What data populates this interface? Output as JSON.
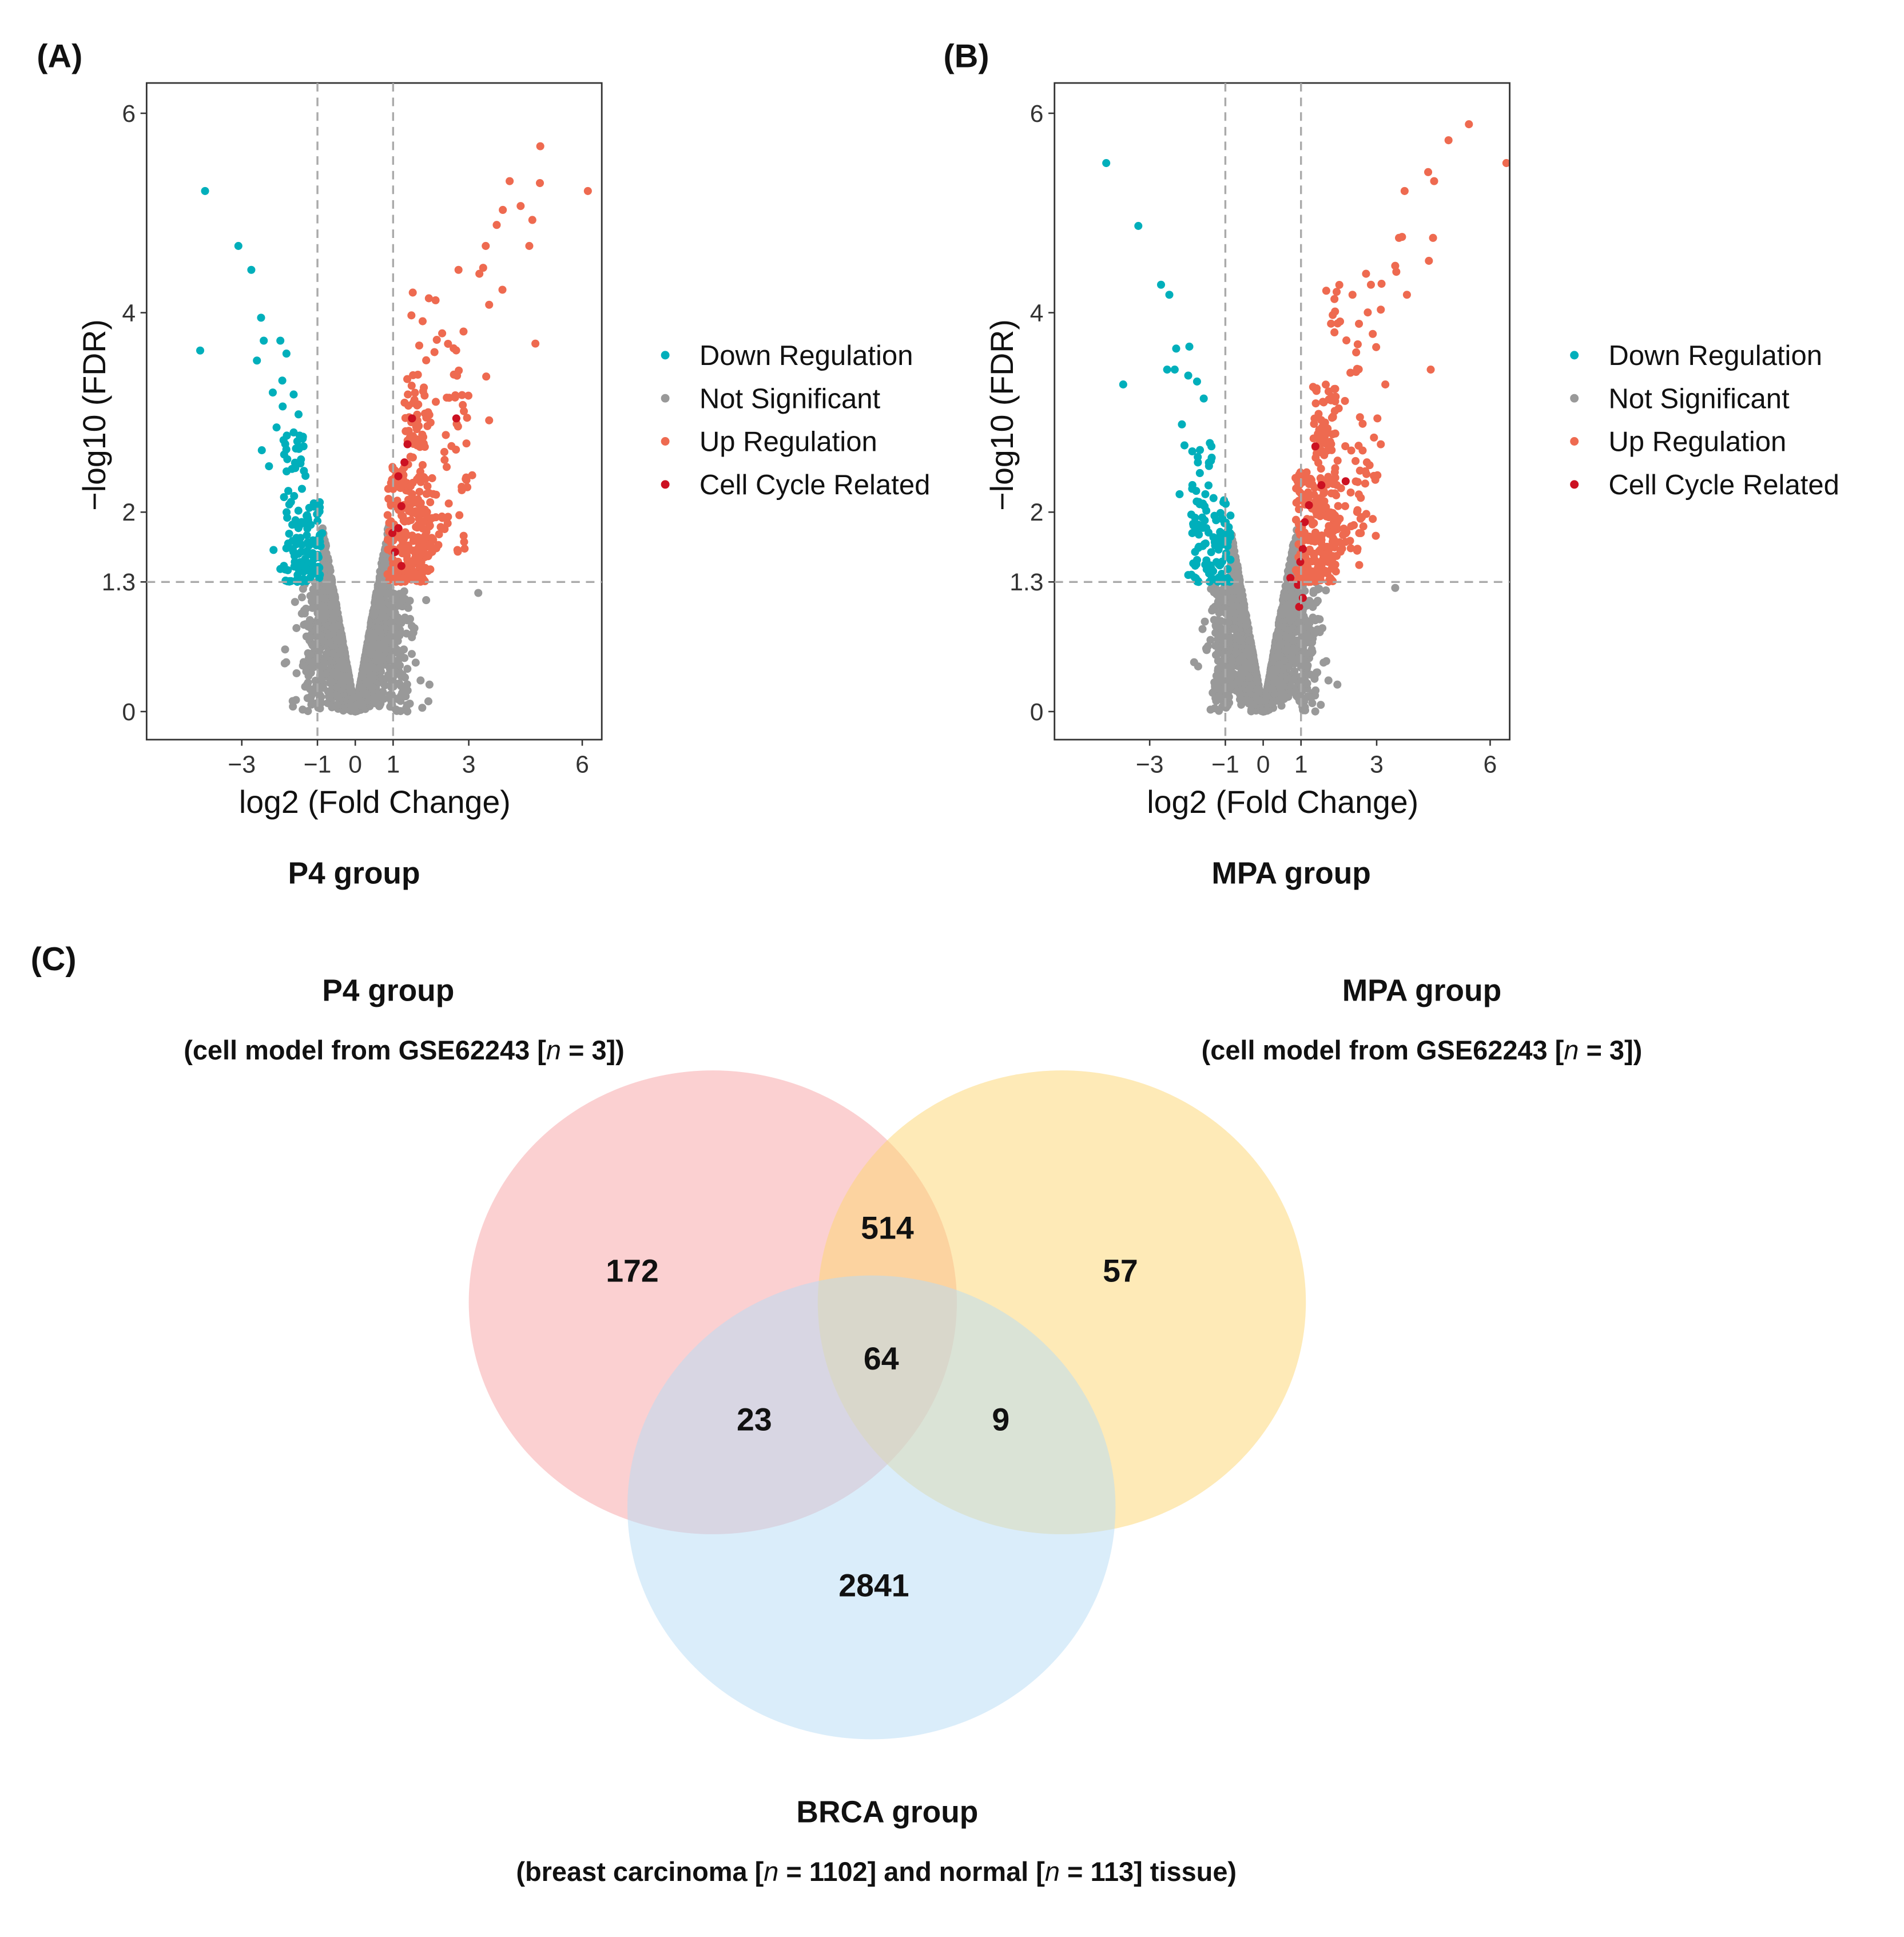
{
  "colors": {
    "down": "#00AFBB",
    "ns": "#999999",
    "up": "#EE6A50",
    "cell": "#CC1122",
    "venn_p4": "#F7A1A3",
    "venn_mpa": "#FDD670",
    "venn_brca": "#B5DCF5"
  },
  "chart_data": [
    {
      "type": "scatter",
      "panel_label": "(A)",
      "title": "P4 group",
      "xlabel": "log2 (Fold Change)",
      "ylabel": "−log10 (FDR)",
      "xlim": [
        -5.5,
        6.5
      ],
      "ylim": [
        -0.3,
        6.3
      ],
      "xticks": [
        {
          "v": -3,
          "label": "−3"
        },
        {
          "v": -1,
          "label": "−1"
        },
        {
          "v": 0,
          "label": "0"
        },
        {
          "v": 1,
          "label": "1"
        },
        {
          "v": 3,
          "label": "3"
        },
        {
          "v": 6,
          "label": "6"
        }
      ],
      "yticks": [
        {
          "v": 0,
          "label": "0"
        },
        {
          "v": 1.3,
          "label": "1.3"
        },
        {
          "v": 2,
          "label": "2"
        },
        {
          "v": 4,
          "label": "4"
        },
        {
          "v": 6,
          "label": "6"
        }
      ],
      "thresholds": {
        "x": [
          -1,
          1
        ],
        "y": 1.3
      },
      "legend": [
        "Down Regulation",
        "Not Significant",
        "Up Regulation",
        "Cell Cycle Related"
      ],
      "legend_position": "right",
      "points": {
        "down": [
          [
            -3.97,
            5.22
          ],
          [
            -3.09,
            4.67
          ],
          [
            -2.75,
            4.43
          ],
          [
            -2.49,
            3.95
          ],
          [
            -4.1,
            3.62
          ],
          [
            -2.42,
            3.72
          ],
          [
            -1.98,
            3.72
          ],
          [
            -1.82,
            3.59
          ],
          [
            -2.6,
            3.52
          ],
          [
            -1.93,
            3.32
          ],
          [
            -2.18,
            3.2
          ],
          [
            -1.63,
            3.18
          ],
          [
            -1.92,
            3.06
          ],
          [
            -1.5,
            2.98
          ],
          [
            -2.08,
            2.85
          ],
          [
            -2.47,
            2.62
          ],
          [
            -2.28,
            2.46
          ],
          [
            -2.16,
            1.62
          ],
          [
            -1.98,
            1.43
          ]
        ],
        "up": [
          [
            4.89,
            5.67
          ],
          [
            4.08,
            5.32
          ],
          [
            4.88,
            5.3
          ],
          [
            6.15,
            5.22
          ],
          [
            3.9,
            5.03
          ],
          [
            4.37,
            5.07
          ],
          [
            3.74,
            4.88
          ],
          [
            4.68,
            4.93
          ],
          [
            4.6,
            4.67
          ],
          [
            3.45,
            4.67
          ],
          [
            2.73,
            4.43
          ],
          [
            3.38,
            4.45
          ],
          [
            3.28,
            4.39
          ],
          [
            3.89,
            4.23
          ],
          [
            3.54,
            4.08
          ],
          [
            4.76,
            3.69
          ],
          [
            3.46,
            3.36
          ],
          [
            3.54,
            2.92
          ],
          [
            3.09,
            2.37
          ],
          [
            2.96,
            2.25
          ],
          [
            2.75,
            1.97
          ],
          [
            2.7,
            1.62
          ]
        ],
        "cell": [
          [
            2.67,
            2.94
          ],
          [
            1.5,
            2.94
          ],
          [
            1.38,
            2.68
          ],
          [
            1.14,
            2.36
          ],
          [
            1.22,
            2.06
          ],
          [
            1.14,
            1.84
          ],
          [
            1.22,
            1.46
          ],
          [
            0.98,
            1.79
          ],
          [
            1.3,
            2.5
          ],
          [
            1.05,
            1.6
          ]
        ],
        "ns": [
          [
            3.25,
            1.19
          ]
        ]
      },
      "clusters": [
        {
          "class": "down",
          "count": 130,
          "x_range": [
            -1.9,
            -0.85
          ],
          "y_range": [
            1.3,
            2.8
          ]
        },
        {
          "class": "up",
          "count": 260,
          "x_range": [
            0.85,
            2.0
          ],
          "y_range": [
            1.3,
            3.4
          ]
        },
        {
          "class": "up",
          "count": 90,
          "x_range": [
            1.4,
            3.0
          ],
          "y_range": [
            1.6,
            4.3
          ]
        },
        {
          "class": "ns",
          "count": 3000,
          "shape": "volcano"
        }
      ]
    },
    {
      "type": "scatter",
      "panel_label": "(B)",
      "title": "MPA group",
      "xlabel": "log2 (Fold Change)",
      "ylabel": "−log10 (FDR)",
      "xlim": [
        -5.5,
        6.5
      ],
      "ylim": [
        -0.3,
        6.3
      ],
      "xticks": [
        {
          "v": -3,
          "label": "−3"
        },
        {
          "v": -1,
          "label": "−1"
        },
        {
          "v": 0,
          "label": "0"
        },
        {
          "v": 1,
          "label": "1"
        },
        {
          "v": 3,
          "label": "3"
        },
        {
          "v": 6,
          "label": "6"
        }
      ],
      "yticks": [
        {
          "v": 0,
          "label": "0"
        },
        {
          "v": 1.3,
          "label": "1.3"
        },
        {
          "v": 2,
          "label": "2"
        },
        {
          "v": 4,
          "label": "4"
        },
        {
          "v": 6,
          "label": "6"
        }
      ],
      "thresholds": {
        "x": [
          -1,
          1
        ],
        "y": 1.3
      },
      "legend": [
        "Down Regulation",
        "Not Significant",
        "Up Regulation",
        "Cell Cycle Related"
      ],
      "legend_position": "right",
      "points": {
        "down": [
          [
            -4.15,
            5.5
          ],
          [
            -3.3,
            4.87
          ],
          [
            -2.7,
            4.28
          ],
          [
            -2.48,
            4.18
          ],
          [
            -3.7,
            3.28
          ],
          [
            -2.3,
            3.64
          ],
          [
            -1.95,
            3.66
          ],
          [
            -2.54,
            3.43
          ],
          [
            -2.34,
            3.43
          ],
          [
            -1.98,
            3.37
          ],
          [
            -1.75,
            3.31
          ],
          [
            -1.57,
            3.14
          ],
          [
            -2.15,
            2.88
          ],
          [
            -2.08,
            2.67
          ],
          [
            -2.21,
            2.18
          ],
          [
            -1.98,
            1.37
          ]
        ],
        "up": [
          [
            5.44,
            5.89
          ],
          [
            4.9,
            5.73
          ],
          [
            6.43,
            5.5
          ],
          [
            4.36,
            5.41
          ],
          [
            4.52,
            5.32
          ],
          [
            3.74,
            5.22
          ],
          [
            3.59,
            4.75
          ],
          [
            3.67,
            4.76
          ],
          [
            4.49,
            4.75
          ],
          [
            4.38,
            4.52
          ],
          [
            3.49,
            4.47
          ],
          [
            3.52,
            4.41
          ],
          [
            2.72,
            4.39
          ],
          [
            2.85,
            4.28
          ],
          [
            3.13,
            4.29
          ],
          [
            3.8,
            4.18
          ],
          [
            2.36,
            4.18
          ],
          [
            3.11,
            4.03
          ],
          [
            4.43,
            3.43
          ],
          [
            3.23,
            3.28
          ],
          [
            3.02,
            2.94
          ],
          [
            3.11,
            2.68
          ],
          [
            3.02,
            2.37
          ],
          [
            2.7,
            2.41
          ],
          [
            2.61,
            1.95
          ],
          [
            2.54,
            1.79
          ],
          [
            2.54,
            1.47
          ]
        ],
        "cell": [
          [
            1.54,
            2.27
          ],
          [
            2.18,
            2.31
          ],
          [
            0.72,
            1.34
          ],
          [
            0.92,
            1.27
          ],
          [
            1.05,
            1.14
          ],
          [
            0.98,
            1.5
          ],
          [
            1.05,
            1.63
          ],
          [
            1.21,
            2.07
          ],
          [
            1.38,
            2.66
          ],
          [
            0.95,
            1.05
          ],
          [
            1.1,
            1.9
          ]
        ],
        "ns": [
          [
            3.49,
            1.24
          ]
        ]
      },
      "clusters": [
        {
          "class": "down",
          "count": 120,
          "x_range": [
            -1.9,
            -0.85
          ],
          "y_range": [
            1.3,
            2.8
          ]
        },
        {
          "class": "up",
          "count": 240,
          "x_range": [
            0.85,
            2.0
          ],
          "y_range": [
            1.3,
            3.3
          ]
        },
        {
          "class": "up",
          "count": 90,
          "x_range": [
            1.4,
            3.0
          ],
          "y_range": [
            1.6,
            4.3
          ]
        },
        {
          "class": "ns",
          "count": 3000,
          "shape": "volcano"
        }
      ]
    }
  ],
  "venn": {
    "panel_label": "(C)",
    "sets": [
      {
        "title": "P4 group",
        "subtitle_pre": "(cell model from GSE62243 [",
        "n_symbol": "n",
        "subtitle_post": " = 3])"
      },
      {
        "title": "MPA group",
        "subtitle_pre": "(cell model from GSE62243 [",
        "n_symbol": "n",
        "subtitle_post": " = 3])"
      },
      {
        "title": "BRCA group",
        "subtitle_pre": "(breast carcinoma [",
        "n_symbol": "n",
        "subtitle_mid": " = 1102] and normal [",
        "subtitle_post": " = 113] tissue)"
      }
    ],
    "regions": {
      "p4_only": "172",
      "p4_mpa": "514",
      "mpa_only": "57",
      "all": "64",
      "p4_brca": "23",
      "mpa_brca": "9",
      "brca_only": "2841"
    }
  }
}
